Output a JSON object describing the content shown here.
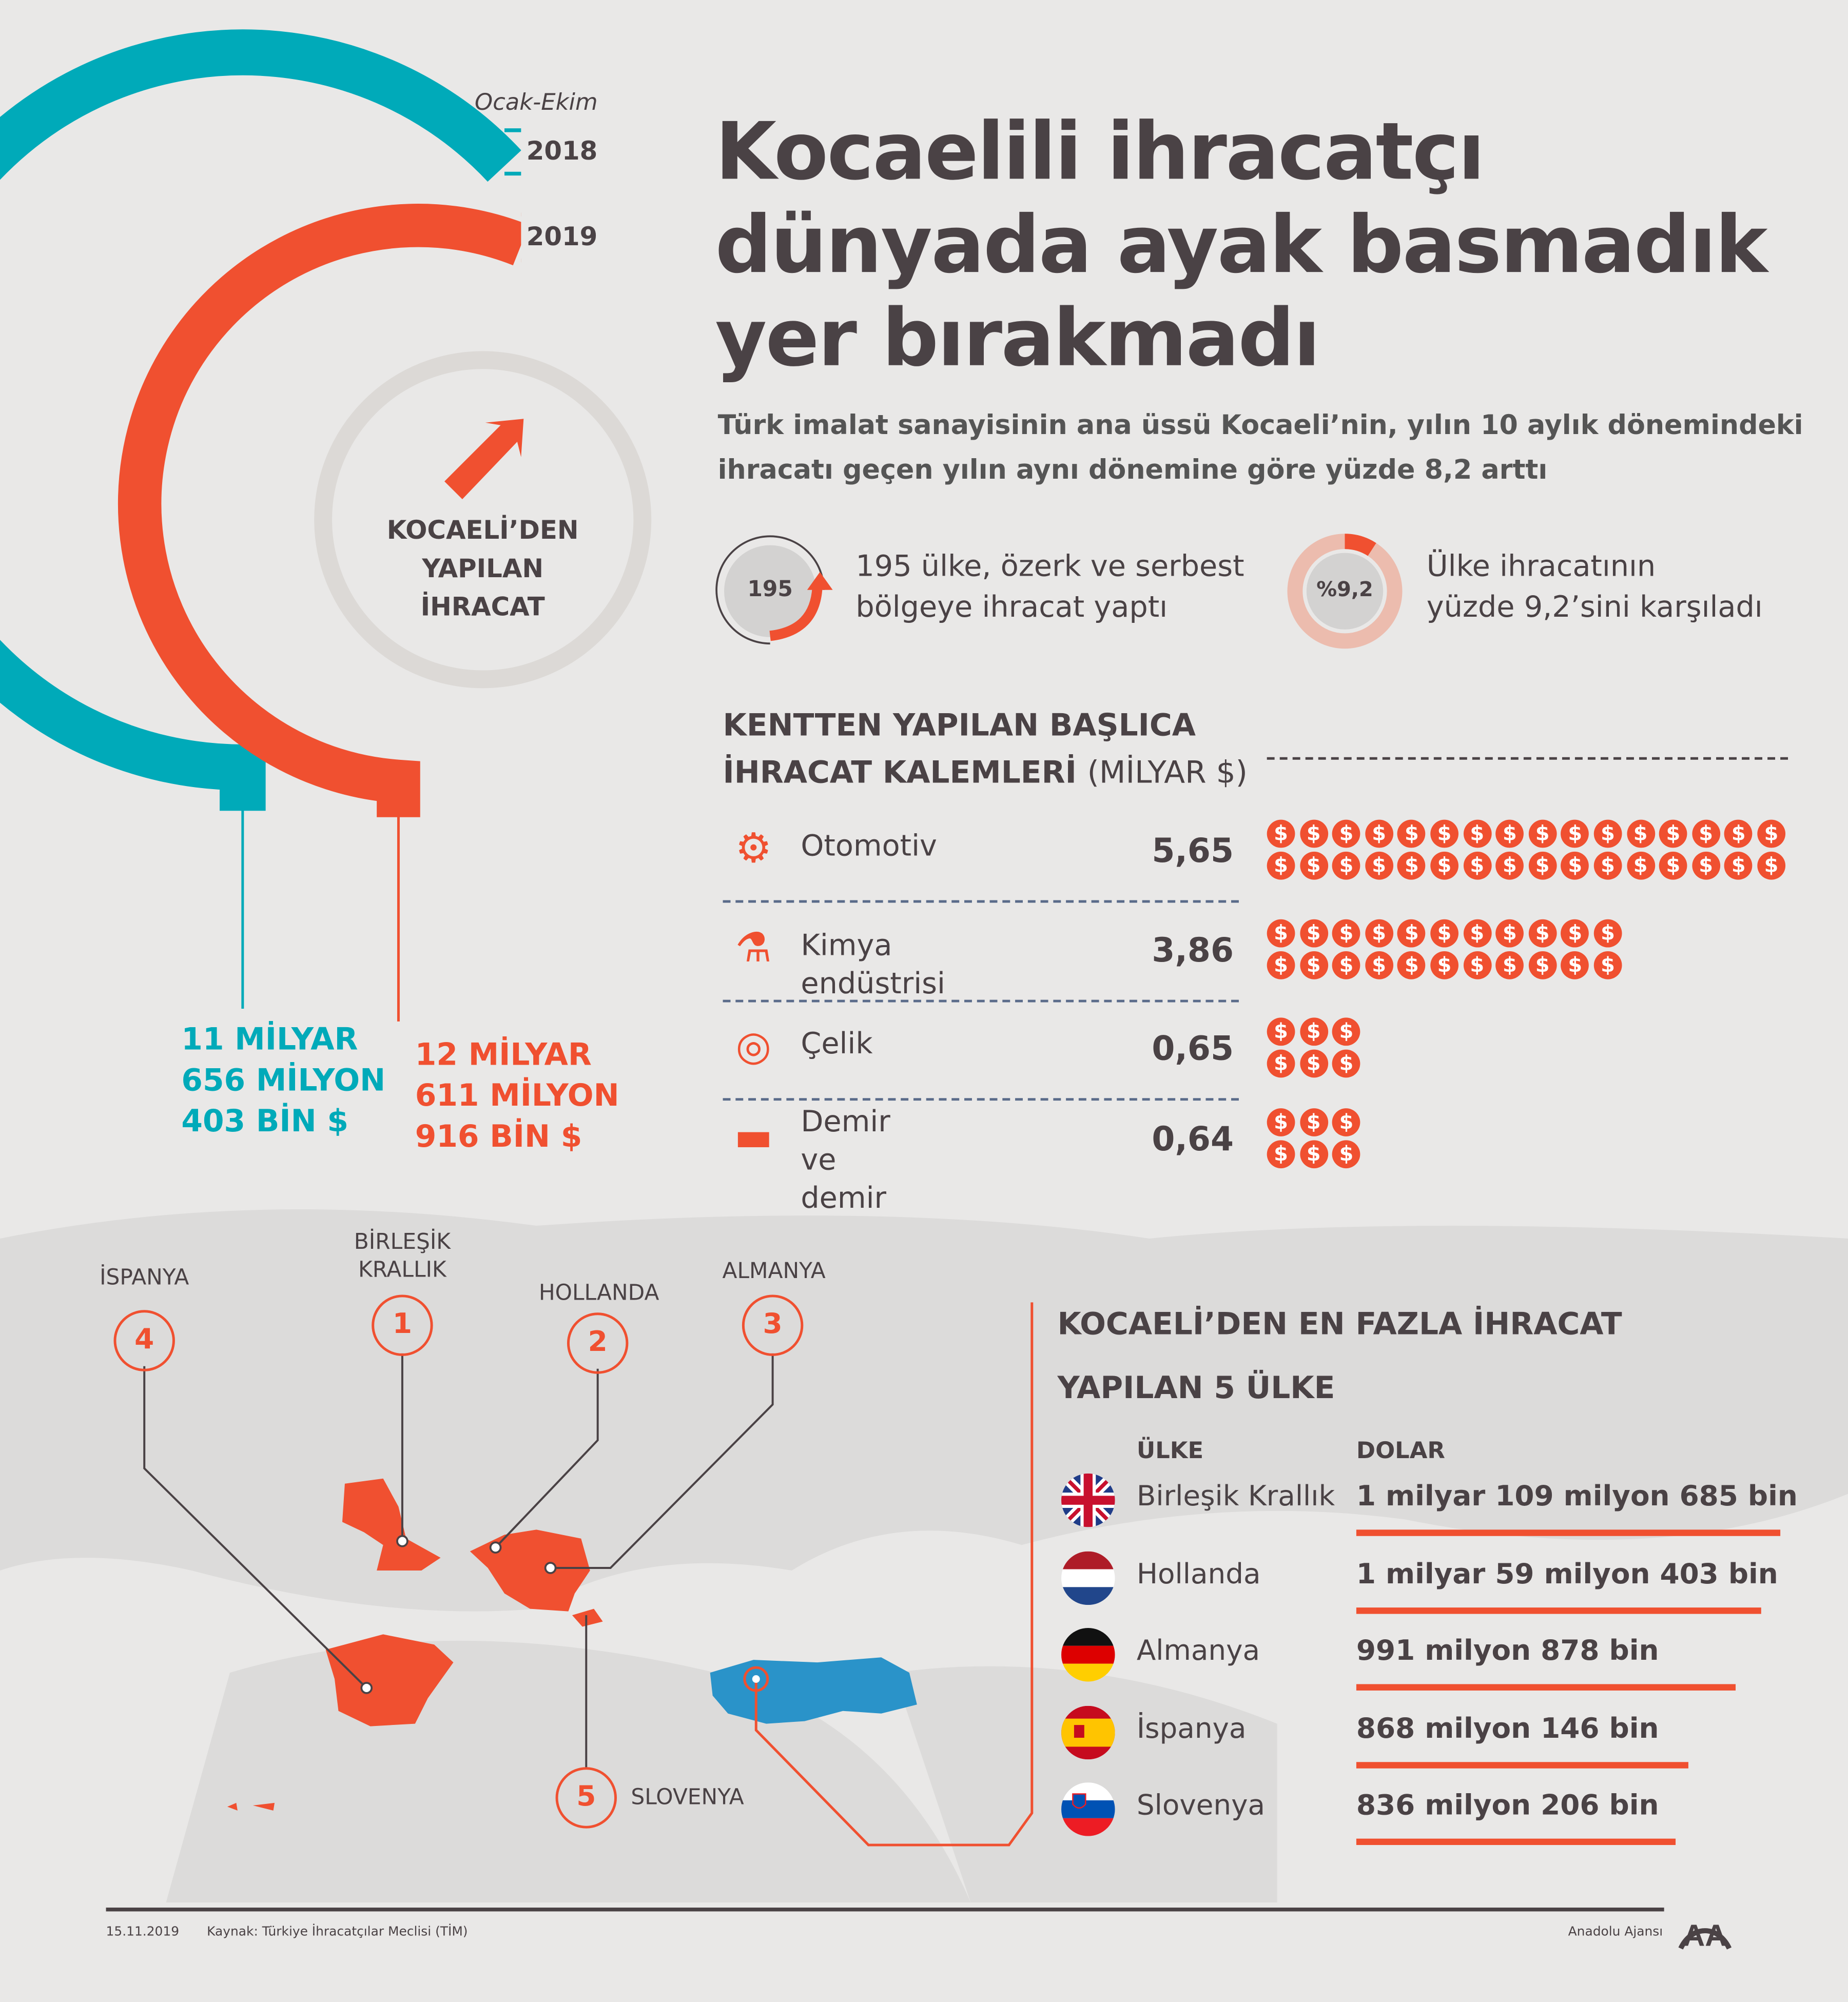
{
  "period": "Ocak-Ekim",
  "years": [
    "2018",
    "2019"
  ],
  "center_label": [
    "KOCAELİ’DEN",
    "YAPILAN",
    "İHRACAT"
  ],
  "totals": {
    "y2018": [
      "11 MİLYAR",
      "656 MİLYON",
      "403 BİN $"
    ],
    "y2019": [
      "12 MİLYAR",
      "611 MİLYON",
      "916 BİN $"
    ]
  },
  "title": [
    "Kocaelili ihracatçı",
    "dünyada ayak basmadık",
    "yer bırakmadı"
  ],
  "subtitle": [
    "Türk imalat sanayisinin ana üssü Kocaeli’nin, yılın 10 aylık dönemindeki",
    "ihracatı geçen yılın aynı dönemine göre yüzde 8,2 arttı"
  ],
  "stats": [
    {
      "badge": "195",
      "text": [
        "195 ülke, özerk ve serbest",
        "bölgeye ihracat yaptı"
      ]
    },
    {
      "badge": "%9,2",
      "percent": 9.2,
      "text": [
        "Ülke ihracatının",
        "yüzde 9,2’sini karşıladı"
      ]
    }
  ],
  "items_section": {
    "title1": "KENTTEN YAPILAN BAŞLICA",
    "title2": "İHRACAT KALEMLERİ",
    "unit": "(MİLYAR $)",
    "items": [
      {
        "label": [
          "Otomotiv"
        ],
        "value": "5,65",
        "icon": "gears-icon",
        "dollars": 32
      },
      {
        "label": [
          "Kimya endüstrisi"
        ],
        "value": "3,86",
        "icon": "flask-icon",
        "dollars": 22
      },
      {
        "label": [
          "Çelik"
        ],
        "value": "0,65",
        "icon": "steel-pipe-icon",
        "dollars": 6
      },
      {
        "label": [
          "Demir ve",
          "demir dışı metaller"
        ],
        "value": "0,64",
        "icon": "anvil-icon",
        "dollars": 6
      }
    ],
    "dollar_symbol": "$"
  },
  "map_labels": [
    {
      "rank": "1",
      "name": [
        "BİRLEŞİK",
        "KRALLIK"
      ]
    },
    {
      "rank": "2",
      "name": [
        "HOLLANDA"
      ]
    },
    {
      "rank": "3",
      "name": [
        "ALMANYA"
      ]
    },
    {
      "rank": "4",
      "name": [
        "İSPANYA"
      ]
    },
    {
      "rank": "5",
      "name": [
        "SLOVENYA"
      ]
    }
  ],
  "top5": {
    "title": [
      "KOCAELİ’DEN EN FAZLA İHRACAT",
      "YAPILAN 5 ÜLKE"
    ],
    "col_country": "ÜLKE",
    "col_dollar": "DOLAR",
    "rows": [
      {
        "country": "Birleşik Krallık",
        "amount": "1 milyar 109 milyon 685 bin",
        "bar": 1109.685
      },
      {
        "country": "Hollanda",
        "amount": "1 milyar 59 milyon 403 bin",
        "bar": 1059.403
      },
      {
        "country": "Almanya",
        "amount": "991 milyon 878 bin",
        "bar": 991.878
      },
      {
        "country": "İspanya",
        "amount": "868 milyon 146 bin",
        "bar": 868.146
      },
      {
        "country": "Slovenya",
        "amount": "836 milyon 206 bin",
        "bar": 836.206
      }
    ]
  },
  "footer": {
    "date": "15.11.2019",
    "source": "Kaynak: Türkiye İhracatçılar Meclisi (TİM)",
    "agency": "Anadolu Ajansı",
    "logo": "AA"
  },
  "colors": {
    "teal": "#00aab9",
    "orange": "#f05030",
    "dark": "#4a4245",
    "turkey": "#2a93c9"
  }
}
